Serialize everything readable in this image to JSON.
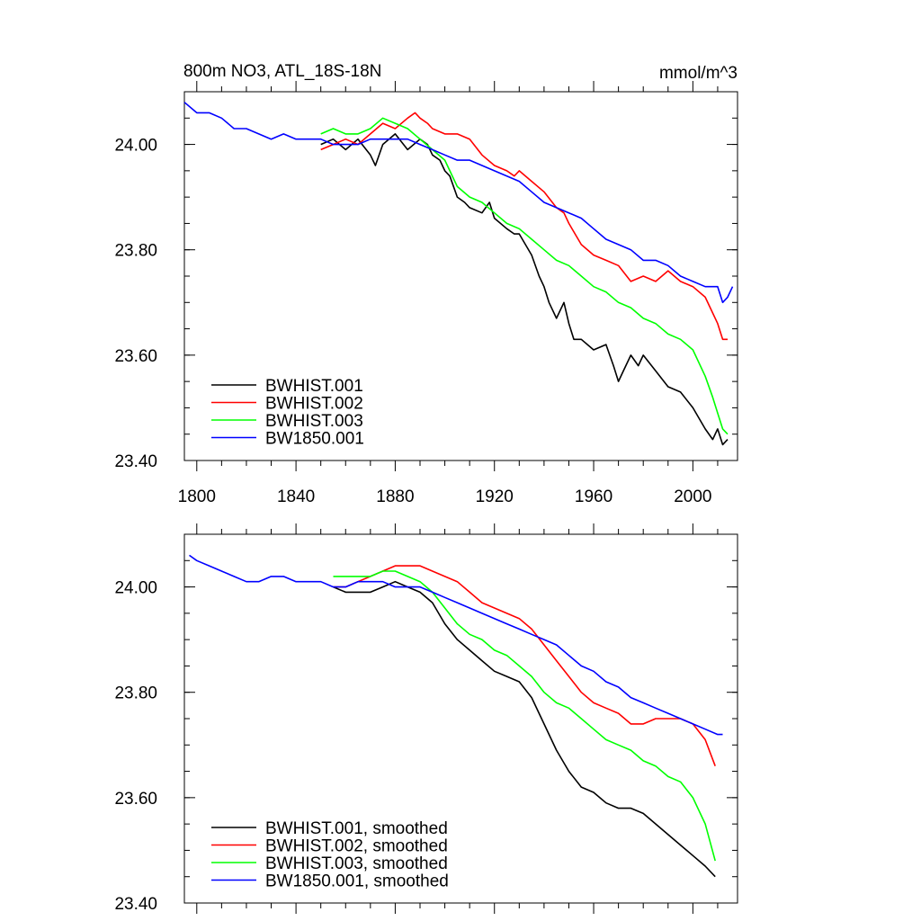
{
  "chart_data": [
    {
      "type": "line",
      "title": "800m NO3, ATL_18S-18N",
      "units": "mmol/m^3",
      "xlim": [
        1795,
        2018
      ],
      "ylim": [
        23.4,
        24.1
      ],
      "xticks": [
        1800,
        1840,
        1880,
        1920,
        1960,
        2000
      ],
      "yticks": [
        "23.40",
        "23.60",
        "23.80",
        "24.00"
      ],
      "legend_position": "bottom-left",
      "series": [
        {
          "name": "BWHIST.001",
          "color": "#000000",
          "x": [
            1850,
            1855,
            1860,
            1865,
            1870,
            1872,
            1875,
            1880,
            1885,
            1890,
            1893,
            1895,
            1898,
            1900,
            1902,
            1905,
            1908,
            1910,
            1915,
            1918,
            1920,
            1925,
            1928,
            1930,
            1935,
            1938,
            1940,
            1942,
            1945,
            1948,
            1950,
            1952,
            1955,
            1960,
            1965,
            1968,
            1970,
            1972,
            1975,
            1978,
            1980,
            1985,
            1990,
            1995,
            2000,
            2005,
            2008,
            2010,
            2012,
            2014
          ],
          "y": [
            24.0,
            24.01,
            23.99,
            24.01,
            23.98,
            23.96,
            24.0,
            24.02,
            23.99,
            24.01,
            24.0,
            23.98,
            23.97,
            23.95,
            23.94,
            23.9,
            23.89,
            23.88,
            23.87,
            23.89,
            23.86,
            23.84,
            23.83,
            23.83,
            23.79,
            23.75,
            23.73,
            23.7,
            23.67,
            23.7,
            23.66,
            23.63,
            23.63,
            23.61,
            23.62,
            23.58,
            23.55,
            23.57,
            23.6,
            23.58,
            23.6,
            23.57,
            23.54,
            23.53,
            23.5,
            23.46,
            23.44,
            23.46,
            23.43,
            23.44
          ]
        },
        {
          "name": "BWHIST.002",
          "color": "#ff0000",
          "x": [
            1850,
            1855,
            1860,
            1865,
            1870,
            1875,
            1880,
            1885,
            1888,
            1890,
            1893,
            1895,
            1900,
            1905,
            1910,
            1915,
            1920,
            1925,
            1928,
            1930,
            1935,
            1940,
            1945,
            1948,
            1950,
            1955,
            1960,
            1965,
            1970,
            1975,
            1980,
            1985,
            1990,
            1995,
            2000,
            2005,
            2008,
            2010,
            2012,
            2014
          ],
          "y": [
            23.99,
            24.0,
            24.01,
            24.0,
            24.02,
            24.04,
            24.03,
            24.05,
            24.06,
            24.05,
            24.04,
            24.03,
            24.02,
            24.02,
            24.01,
            23.98,
            23.96,
            23.95,
            23.94,
            23.95,
            23.93,
            23.91,
            23.88,
            23.87,
            23.85,
            23.81,
            23.79,
            23.78,
            23.77,
            23.74,
            23.75,
            23.74,
            23.76,
            23.74,
            23.73,
            23.71,
            23.68,
            23.66,
            23.63,
            23.63
          ]
        },
        {
          "name": "BWHIST.003",
          "color": "#00ff00",
          "x": [
            1850,
            1855,
            1860,
            1865,
            1870,
            1875,
            1880,
            1885,
            1890,
            1895,
            1900,
            1905,
            1910,
            1915,
            1920,
            1925,
            1930,
            1935,
            1940,
            1945,
            1950,
            1955,
            1960,
            1965,
            1970,
            1975,
            1980,
            1985,
            1990,
            1995,
            2000,
            2005,
            2008,
            2010,
            2012,
            2014
          ],
          "y": [
            24.02,
            24.03,
            24.02,
            24.02,
            24.03,
            24.05,
            24.04,
            24.03,
            24.01,
            23.99,
            23.97,
            23.92,
            23.9,
            23.89,
            23.87,
            23.85,
            23.84,
            23.82,
            23.8,
            23.78,
            23.77,
            23.75,
            23.73,
            23.72,
            23.7,
            23.69,
            23.67,
            23.66,
            23.64,
            23.63,
            23.61,
            23.56,
            23.52,
            23.49,
            23.46,
            23.45
          ]
        },
        {
          "name": "BW1850.001",
          "color": "#0000ff",
          "x": [
            1795,
            1800,
            1805,
            1810,
            1815,
            1820,
            1825,
            1830,
            1835,
            1840,
            1845,
            1850,
            1855,
            1860,
            1865,
            1870,
            1875,
            1880,
            1885,
            1890,
            1895,
            1900,
            1905,
            1910,
            1915,
            1920,
            1925,
            1930,
            1935,
            1940,
            1945,
            1950,
            1955,
            1960,
            1965,
            1970,
            1975,
            1980,
            1985,
            1990,
            1995,
            2000,
            2005,
            2010,
            2012,
            2014,
            2016
          ],
          "y": [
            24.08,
            24.06,
            24.06,
            24.05,
            24.03,
            24.03,
            24.02,
            24.01,
            24.02,
            24.01,
            24.01,
            24.01,
            24.0,
            24.0,
            24.0,
            24.01,
            24.01,
            24.01,
            24.01,
            24.0,
            23.99,
            23.98,
            23.97,
            23.97,
            23.96,
            23.95,
            23.94,
            23.93,
            23.91,
            23.89,
            23.88,
            23.87,
            23.86,
            23.84,
            23.82,
            23.81,
            23.8,
            23.78,
            23.78,
            23.77,
            23.75,
            23.74,
            23.73,
            23.73,
            23.7,
            23.71,
            23.73
          ]
        }
      ]
    },
    {
      "type": "line",
      "xlim": [
        1795,
        2018
      ],
      "ylim": [
        23.4,
        24.1
      ],
      "xticks": [
        1800,
        1840,
        1880,
        1920,
        1960,
        2000
      ],
      "yticks": [
        "23.40",
        "23.60",
        "23.80",
        "24.00"
      ],
      "legend_position": "bottom-left",
      "series": [
        {
          "name": "BWHIST.001, smoothed",
          "color": "#000000",
          "x": [
            1855,
            1860,
            1865,
            1870,
            1875,
            1880,
            1885,
            1890,
            1895,
            1900,
            1905,
            1910,
            1915,
            1920,
            1925,
            1930,
            1935,
            1940,
            1945,
            1950,
            1955,
            1960,
            1965,
            1970,
            1975,
            1980,
            1985,
            1990,
            1995,
            2000,
            2005,
            2009
          ],
          "y": [
            24.0,
            23.99,
            23.99,
            23.99,
            24.0,
            24.01,
            24.0,
            23.99,
            23.97,
            23.93,
            23.9,
            23.88,
            23.86,
            23.84,
            23.83,
            23.82,
            23.79,
            23.74,
            23.69,
            23.65,
            23.62,
            23.61,
            23.59,
            23.58,
            23.58,
            23.57,
            23.55,
            23.53,
            23.51,
            23.49,
            23.47,
            23.45
          ]
        },
        {
          "name": "BWHIST.002, smoothed",
          "color": "#ff0000",
          "x": [
            1855,
            1860,
            1865,
            1870,
            1875,
            1880,
            1885,
            1890,
            1895,
            1900,
            1905,
            1910,
            1915,
            1920,
            1925,
            1930,
            1935,
            1940,
            1945,
            1950,
            1955,
            1960,
            1965,
            1970,
            1975,
            1980,
            1985,
            1990,
            1995,
            2000,
            2005,
            2009
          ],
          "y": [
            24.0,
            24.0,
            24.01,
            24.02,
            24.03,
            24.04,
            24.04,
            24.04,
            24.03,
            24.02,
            24.01,
            23.99,
            23.97,
            23.96,
            23.95,
            23.94,
            23.92,
            23.89,
            23.86,
            23.83,
            23.8,
            23.78,
            23.77,
            23.76,
            23.74,
            23.74,
            23.75,
            23.75,
            23.75,
            23.74,
            23.71,
            23.66
          ]
        },
        {
          "name": "BWHIST.003, smoothed",
          "color": "#00ff00",
          "x": [
            1855,
            1860,
            1865,
            1870,
            1875,
            1880,
            1885,
            1890,
            1895,
            1900,
            1905,
            1910,
            1915,
            1920,
            1925,
            1930,
            1935,
            1940,
            1945,
            1950,
            1955,
            1960,
            1965,
            1970,
            1975,
            1980,
            1985,
            1990,
            1995,
            2000,
            2005,
            2009
          ],
          "y": [
            24.02,
            24.02,
            24.02,
            24.02,
            24.03,
            24.03,
            24.02,
            24.01,
            23.99,
            23.96,
            23.93,
            23.91,
            23.9,
            23.88,
            23.87,
            23.85,
            23.83,
            23.8,
            23.78,
            23.77,
            23.75,
            23.73,
            23.71,
            23.7,
            23.69,
            23.67,
            23.66,
            23.64,
            23.63,
            23.6,
            23.55,
            23.48
          ]
        },
        {
          "name": "BW1850.001, smoothed",
          "color": "#0000ff",
          "x": [
            1797,
            1800,
            1805,
            1810,
            1815,
            1820,
            1825,
            1830,
            1835,
            1840,
            1845,
            1850,
            1855,
            1860,
            1865,
            1870,
            1875,
            1880,
            1885,
            1890,
            1895,
            1900,
            1905,
            1910,
            1915,
            1920,
            1925,
            1930,
            1935,
            1940,
            1945,
            1950,
            1955,
            1960,
            1965,
            1970,
            1975,
            1980,
            1985,
            1990,
            1995,
            2000,
            2005,
            2010,
            2012
          ],
          "y": [
            24.06,
            24.05,
            24.04,
            24.03,
            24.02,
            24.01,
            24.01,
            24.02,
            24.02,
            24.01,
            24.01,
            24.01,
            24.0,
            24.0,
            24.01,
            24.01,
            24.01,
            24.0,
            24.0,
            24.0,
            23.99,
            23.98,
            23.97,
            23.96,
            23.95,
            23.94,
            23.93,
            23.92,
            23.91,
            23.9,
            23.89,
            23.87,
            23.85,
            23.84,
            23.82,
            23.81,
            23.79,
            23.78,
            23.77,
            23.76,
            23.75,
            23.74,
            23.73,
            23.72,
            23.72
          ]
        }
      ]
    }
  ]
}
